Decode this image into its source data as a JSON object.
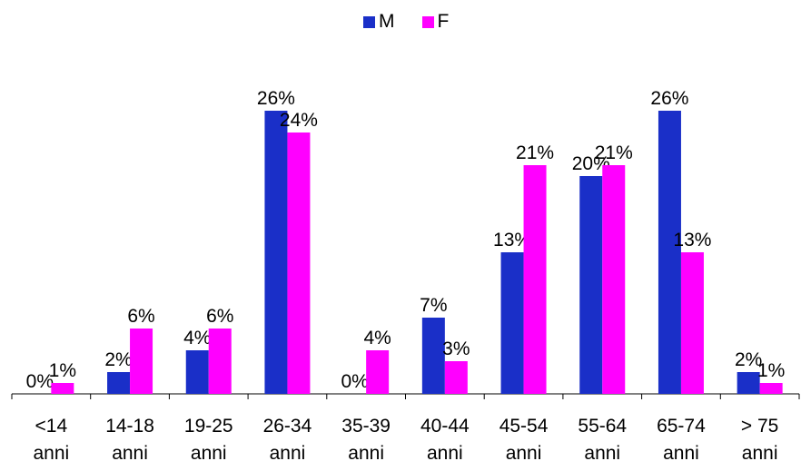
{
  "chart_data": {
    "type": "bar",
    "categories": [
      [
        "<14",
        "anni"
      ],
      [
        "14-18",
        "anni"
      ],
      [
        "19-25",
        "anni"
      ],
      [
        "26-34",
        "anni"
      ],
      [
        "35-39",
        "anni"
      ],
      [
        "40-44",
        "anni"
      ],
      [
        "45-54",
        "anni"
      ],
      [
        "55-64",
        "anni"
      ],
      [
        "65-74",
        "anni"
      ],
      [
        "> 75",
        "anni"
      ]
    ],
    "series": [
      {
        "name": "M",
        "color": "#1a2fc8",
        "values": [
          0,
          2,
          4,
          26,
          0,
          7,
          13,
          20,
          26,
          2
        ],
        "labels": [
          "0%",
          "2%",
          "4%",
          "26%",
          "0%",
          "7%",
          "13%",
          "20%",
          "26%",
          "2%"
        ]
      },
      {
        "name": "F",
        "color": "#ff00ff",
        "values": [
          1,
          6,
          6,
          24,
          4,
          3,
          21,
          21,
          13,
          1
        ],
        "labels": [
          "1%",
          "6%",
          "6%",
          "24%",
          "4%",
          "3%",
          "21%",
          "21%",
          "13%",
          "1%"
        ]
      }
    ],
    "value_unit": "%",
    "ylim": [
      0,
      26
    ],
    "grid": false,
    "legend_position": "top-center"
  }
}
